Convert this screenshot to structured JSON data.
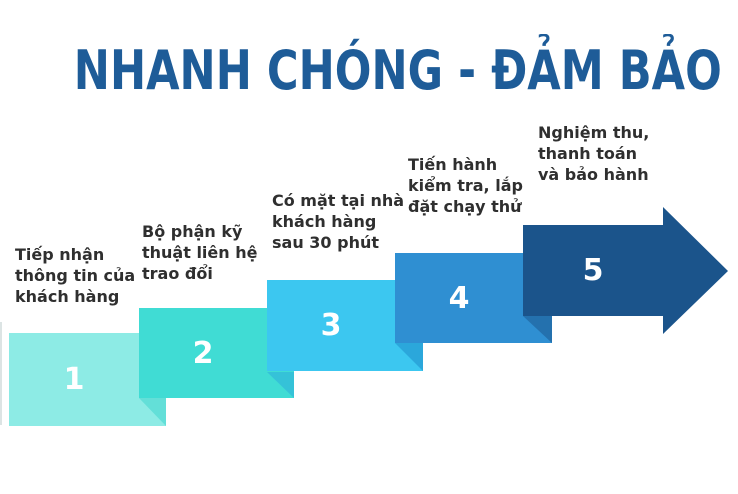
{
  "background_color": "#ffffff",
  "title": {
    "text": "NHANH CHÓNG - ĐẢM BẢO",
    "color": "#1e5c98"
  },
  "labels_color": "#2f2f2f",
  "number_color": "#ffffff",
  "steps": [
    {
      "number": "1",
      "label": "Tiếp nhận\nthông tin của\nkhách hàng",
      "color": "#8debe5",
      "fold_color": "#63dfd8",
      "shape": "rectangle"
    },
    {
      "number": "2",
      "label": "Bộ phận kỹ\nthuật liên hệ\ntrao đổi",
      "color": "#40dcd4",
      "fold_color": "#35c2d8",
      "shape": "rectangle"
    },
    {
      "number": "3",
      "label": "Có mặt tại nhà\nkhách hàng\nsau 30 phút",
      "color": "#3cc7f0",
      "fold_color": "#2ba7db",
      "shape": "rectangle"
    },
    {
      "number": "4",
      "label": "Tiến hành\nkiểm tra, lắp\nđặt chạy thử",
      "color": "#2f8fd2",
      "fold_color": "#2471ae",
      "shape": "rectangle"
    },
    {
      "number": "5",
      "label": "Nghiệm thu,\nthanh toán\nvà bảo hành",
      "color": "#1b548b",
      "fold_color": null,
      "shape": "arrow"
    }
  ]
}
